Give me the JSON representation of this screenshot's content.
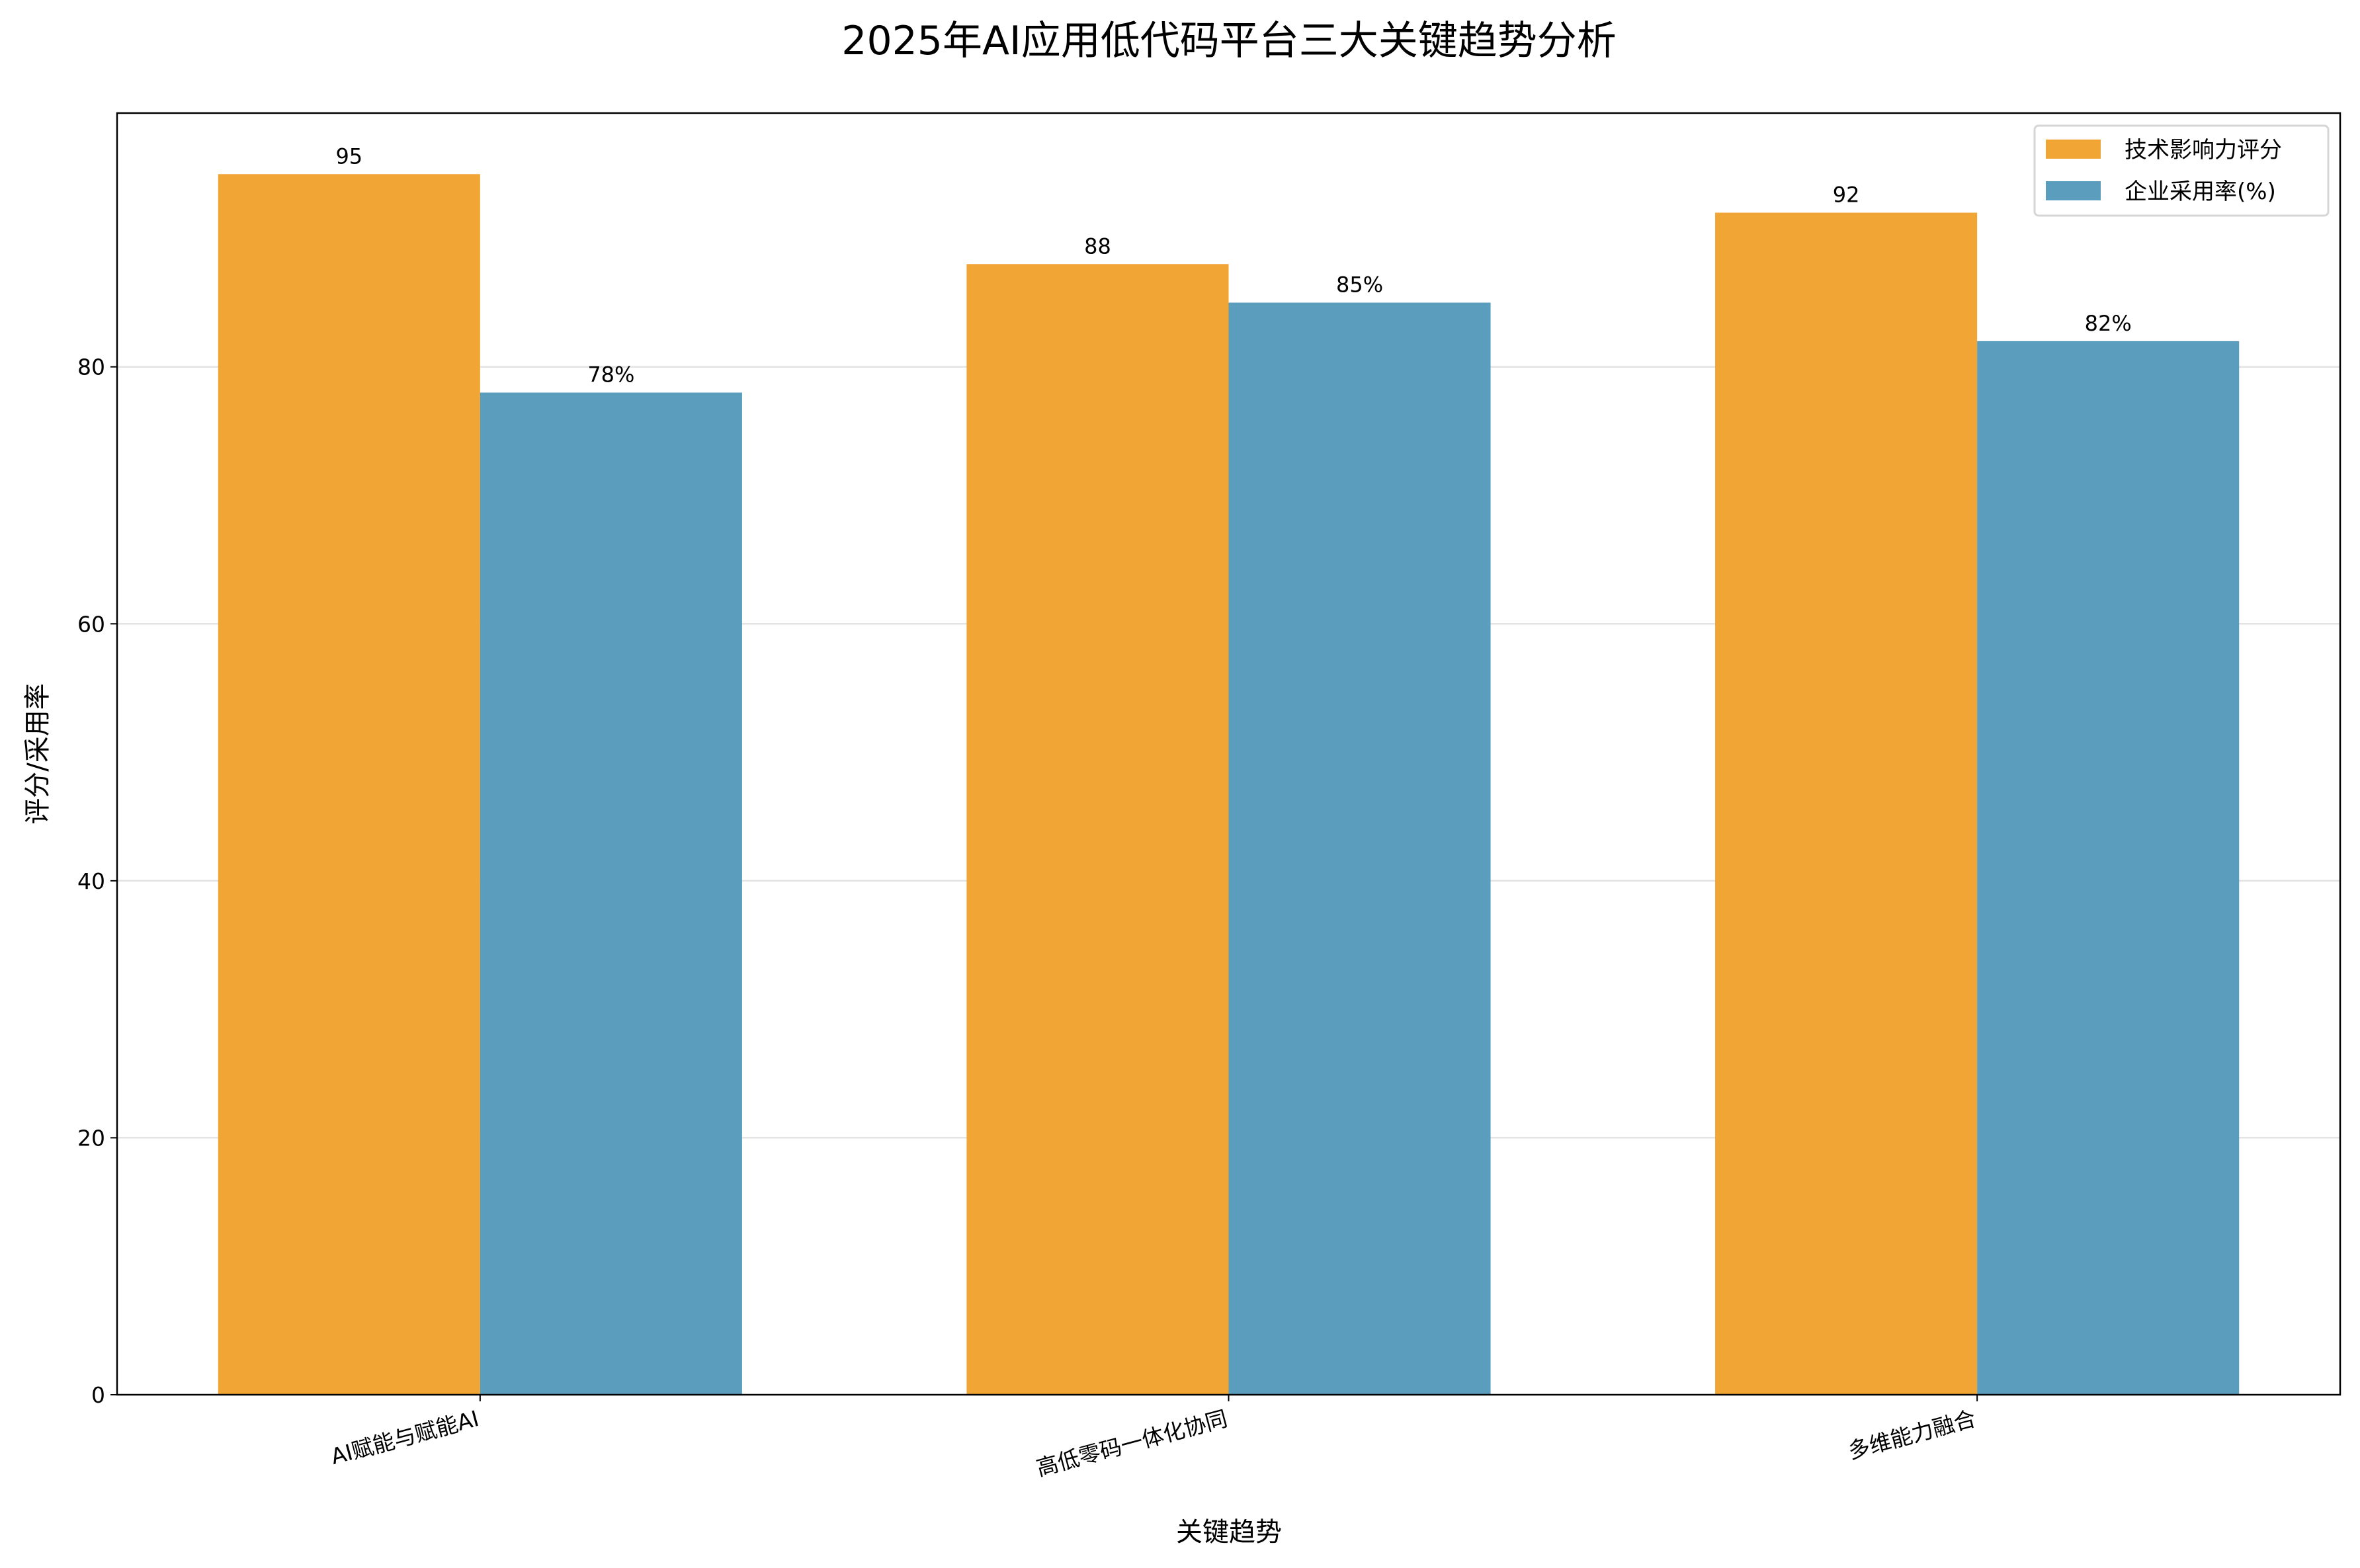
{
  "chart_data": {
    "type": "bar",
    "title": "2025年AI应用低代码平台三大关键趋势分析",
    "xlabel": "关键趋势",
    "ylabel": "评分/采用率",
    "categories": [
      "AI赋能与赋能AI",
      "高低零码一体化协同",
      "多维能力融合"
    ],
    "series": [
      {
        "name": "技术影响力评分",
        "values": [
          95,
          88,
          92
        ],
        "color": "#F0A535",
        "labels": [
          "95",
          "88",
          "92"
        ]
      },
      {
        "name": "企业采用率(%)",
        "values": [
          78,
          85,
          82
        ],
        "color": "#5A9DBD",
        "labels": [
          "78%",
          "85%",
          "82%"
        ]
      }
    ],
    "ylim": [
      0,
      99.75
    ],
    "yticks": [
      0,
      20,
      40,
      60,
      80
    ],
    "ytick_labels": [
      "0",
      "20",
      "40",
      "60",
      "80"
    ],
    "grid": "y",
    "legend": "top-right",
    "bar_width": 0.35
  }
}
